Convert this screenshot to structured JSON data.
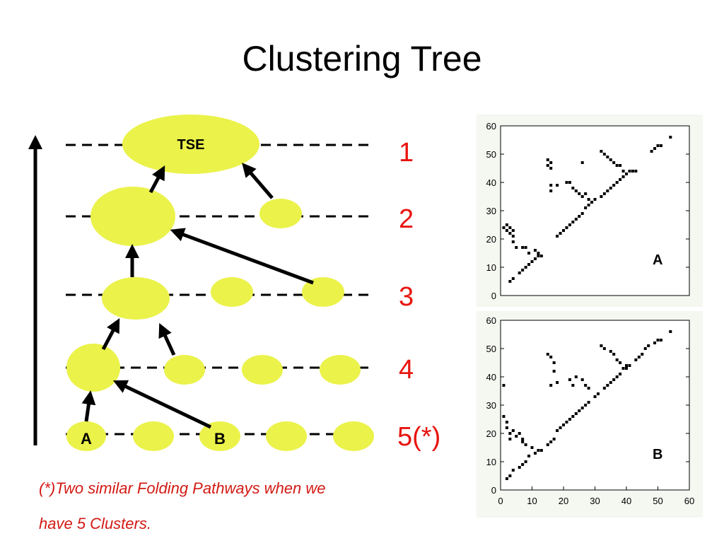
{
  "title": "Clustering Tree",
  "tree": {
    "nodes": [
      "TSE",
      "A",
      "B"
    ],
    "levels": [
      "1",
      "2",
      "3",
      "4",
      "5(*)"
    ]
  },
  "footnote": [
    "(*)Two similar Folding Pathways when we",
    "have 5 Clusters."
  ],
  "chart_data": [
    {
      "type": "scatter",
      "annotation": "A",
      "xlim": [
        0,
        60
      ],
      "ylim": [
        0,
        60
      ],
      "yticks": [
        0,
        10,
        20,
        30,
        40,
        50,
        60
      ],
      "x": [
        3,
        4,
        6,
        7,
        8,
        9,
        10,
        11,
        12,
        18,
        19,
        20,
        21,
        22,
        23,
        24,
        25,
        26,
        27,
        28,
        29,
        30,
        33,
        34,
        35,
        36,
        37,
        38,
        39,
        40,
        41,
        42,
        43,
        48,
        49,
        50,
        51,
        54,
        1,
        2,
        2,
        3,
        3,
        4,
        4,
        4,
        5,
        7,
        8,
        9,
        11,
        12,
        13,
        15,
        15,
        16,
        16,
        16,
        16,
        18,
        21,
        22,
        23,
        24,
        25,
        26,
        27,
        28,
        32,
        26,
        32,
        33,
        34,
        35,
        36,
        37,
        38,
        39,
        40
      ],
      "values": [
        5,
        6,
        8,
        9,
        10,
        11,
        12,
        13,
        14,
        21,
        22,
        23,
        24,
        25,
        26,
        27,
        28,
        29,
        31,
        32,
        33,
        34,
        36,
        37,
        38,
        39,
        40,
        41,
        42,
        43,
        44,
        44,
        44,
        51,
        52,
        53,
        53,
        56,
        24,
        23,
        25,
        22,
        24,
        23,
        21,
        19,
        17,
        17,
        17,
        15,
        16,
        15,
        14,
        46,
        48,
        47,
        45,
        37,
        39,
        39,
        40,
        40,
        38,
        37,
        36,
        35,
        36,
        34,
        35,
        47,
        51,
        50,
        49,
        48,
        47,
        46,
        46,
        44,
        43
      ]
    },
    {
      "type": "scatter",
      "annotation": "B",
      "xlim": [
        0,
        60
      ],
      "ylim": [
        0,
        60
      ],
      "xticks": [
        0,
        10,
        20,
        30,
        40,
        50,
        60
      ],
      "yticks": [
        0,
        10,
        20,
        30,
        40,
        50,
        60
      ],
      "x": [
        2,
        3,
        4,
        6,
        7,
        8,
        9,
        11,
        12,
        15,
        16,
        17,
        18,
        19,
        20,
        21,
        22,
        23,
        24,
        25,
        26,
        27,
        28,
        30,
        31,
        33,
        34,
        35,
        36,
        37,
        38,
        40,
        41,
        43,
        44,
        45,
        46,
        47,
        49,
        50,
        51,
        54,
        1,
        1,
        2,
        2,
        3,
        3,
        4,
        5,
        6,
        7,
        7,
        8,
        10,
        13,
        15,
        16,
        17,
        17,
        16,
        18,
        22,
        23,
        24,
        26,
        27,
        28,
        32,
        33,
        35,
        36,
        37,
        38,
        39,
        40
      ],
      "values": [
        4,
        5,
        7,
        8,
        9,
        10,
        12,
        13,
        14,
        16,
        17,
        18,
        21,
        22,
        23,
        24,
        25,
        26,
        27,
        28,
        29,
        30,
        31,
        33,
        34,
        36,
        37,
        38,
        39,
        40,
        41,
        43,
        44,
        46,
        47,
        48,
        50,
        51,
        52,
        53,
        53,
        56,
        37,
        26,
        24,
        22,
        20,
        18,
        21,
        19,
        20,
        18,
        17,
        16,
        15,
        14,
        48,
        47,
        45,
        42,
        37,
        38,
        39,
        37,
        40,
        39,
        37,
        36,
        51,
        50,
        49,
        48,
        46,
        45,
        43,
        44
      ]
    }
  ]
}
